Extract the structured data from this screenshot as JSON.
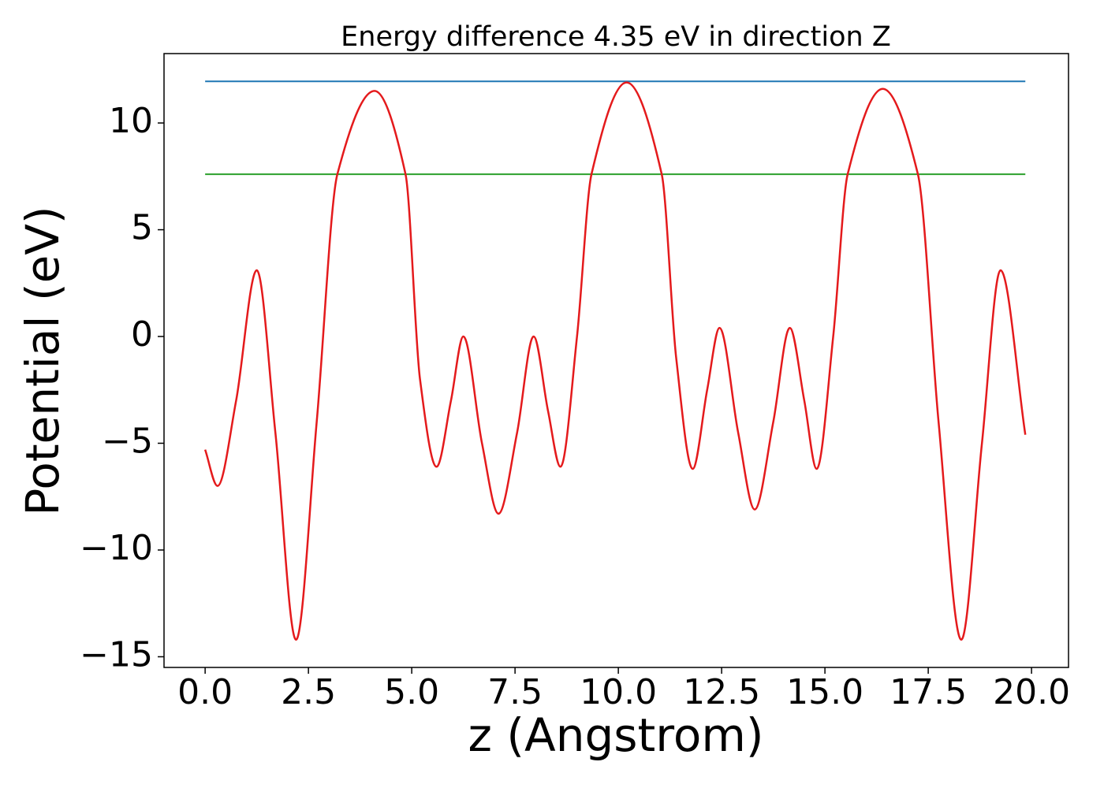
{
  "chart_data": {
    "type": "line",
    "title": "Energy difference 4.35 eV in direction Z",
    "xlabel": "z (Angstrom)",
    "ylabel": "Potential (eV)",
    "xlim": [
      -0.995,
      20.895
    ],
    "ylim": [
      -15.5,
      13.25
    ],
    "xticks": [
      {
        "value": 0,
        "label": "0.0"
      },
      2.5,
      {
        "value": 5,
        "label": "5.0"
      },
      7.5,
      {
        "value": 10,
        "label": "10.0"
      },
      12.5,
      {
        "value": 15,
        "label": "15.0"
      },
      17.5,
      {
        "value": 20,
        "label": "20.0"
      }
    ],
    "yticks": [
      {
        "value": -15,
        "label": "−15"
      },
      {
        "value": -10,
        "label": "−10"
      },
      {
        "value": -5,
        "label": "−5"
      },
      0,
      5,
      10
    ],
    "series": [
      {
        "color": "#1f77b4",
        "x": [
          0,
          19.85
        ],
        "values": [
          11.95,
          11.95
        ]
      },
      {
        "color": "#2ca02c",
        "x": [
          0,
          19.85
        ],
        "values": [
          7.6,
          7.6
        ]
      },
      {
        "color": "#e41a1c",
        "x": [
          0.0,
          0.3,
          0.75,
          1.25,
          1.7,
          2.2,
          2.7,
          3.2,
          4.1,
          4.85,
          5.2,
          5.6,
          5.95,
          6.25,
          6.7,
          7.1,
          7.55,
          7.95,
          8.3,
          8.6,
          9.0,
          9.35,
          10.2,
          11.05,
          11.4,
          11.8,
          12.15,
          12.45,
          12.9,
          13.3,
          13.75,
          14.15,
          14.5,
          14.8,
          15.2,
          15.55,
          16.4,
          17.25,
          17.75,
          18.3,
          18.8,
          19.25,
          19.85
        ],
        "values": [
          -5.3,
          -7.0,
          -3.0,
          3.1,
          -4.5,
          -14.2,
          -4.0,
          7.6,
          11.5,
          7.6,
          -2.0,
          -6.1,
          -3.0,
          0.0,
          -5.0,
          -8.3,
          -4.5,
          0.0,
          -3.5,
          -6.1,
          0.0,
          7.6,
          11.9,
          7.6,
          -1.0,
          -6.2,
          -2.5,
          0.4,
          -4.5,
          -8.1,
          -4.0,
          0.4,
          -3.0,
          -6.2,
          0.0,
          7.6,
          11.6,
          7.6,
          -4.0,
          -14.2,
          -5.0,
          3.1,
          -4.6
        ]
      }
    ]
  }
}
